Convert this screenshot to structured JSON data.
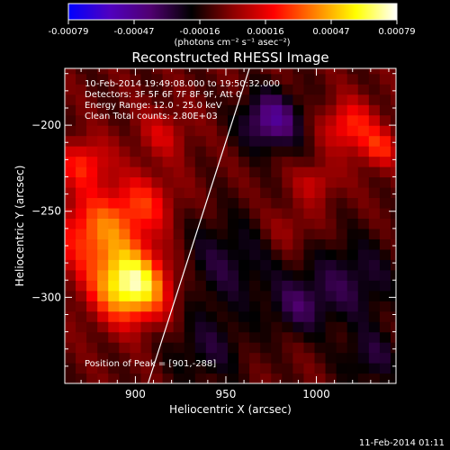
{
  "chart_data": {
    "type": "heatmap",
    "title": "Reconstructed RHESSI Image",
    "xlabel": "Heliocentric X (arcsec)",
    "ylabel": "Heliocentric Y (arcsec)",
    "x_ticks": [
      900,
      950,
      1000
    ],
    "y_ticks": [
      -200,
      -250,
      -300
    ],
    "xlim": [
      861,
      1044
    ],
    "ylim": [
      -350,
      -167
    ],
    "colorbar": {
      "ticks": [
        "-0.00079",
        "-0.00047",
        "-0.00016",
        "0.00016",
        "0.00047",
        "0.00079"
      ],
      "range": [
        -0.00079,
        0.00079
      ],
      "units": "(photons cm⁻² s⁻¹ asec⁻²)",
      "colormap": [
        "#0000ff",
        "#5000c0",
        "#500070",
        "#000000",
        "#8b0000",
        "#ff0000",
        "#ff8000",
        "#ffff00",
        "#ffffff"
      ]
    },
    "annotations": [
      "10-Feb-2014 19:49:08.000  to 19:50:32.000",
      "Detectors: 3F 5F 6F 7F 8F 9F, Att 0",
      "Energy Range: 12.0 - 25.0 keV",
      "Clean     Total counts: 2.80E+03"
    ],
    "peak_label": "Position of Peak = [901,-288]",
    "peak": [
      901,
      -288
    ],
    "limb_line": [
      [
        907,
        -350
      ],
      [
        963,
        -167
      ]
    ],
    "sources": [
      {
        "x": 898,
        "y": -293,
        "sigma": 14,
        "amp": 0.00079
      },
      {
        "x": 880,
        "y": -262,
        "sigma": 16,
        "amp": 0.00042
      },
      {
        "x": 905,
        "y": -245,
        "sigma": 12,
        "amp": 0.00025
      },
      {
        "x": 872,
        "y": -222,
        "sigma": 10,
        "amp": 0.0003
      },
      {
        "x": 915,
        "y": -205,
        "sigma": 10,
        "amp": 0.00018
      },
      {
        "x": 1018,
        "y": -200,
        "sigma": 10,
        "amp": 0.00032
      },
      {
        "x": 1035,
        "y": -213,
        "sigma": 8,
        "amp": 0.00028
      },
      {
        "x": 1000,
        "y": -233,
        "sigma": 8,
        "amp": 0.00018
      },
      {
        "x": 985,
        "y": -260,
        "sigma": 10,
        "amp": 0.00012
      },
      {
        "x": 975,
        "y": -197,
        "sigma": 12,
        "amp": -0.0004
      },
      {
        "x": 990,
        "y": -305,
        "sigma": 12,
        "amp": -0.00022
      },
      {
        "x": 950,
        "y": -280,
        "sigma": 20,
        "amp": -0.0002
      },
      {
        "x": 1020,
        "y": -290,
        "sigma": 18,
        "amp": -0.00022
      },
      {
        "x": 940,
        "y": -330,
        "sigma": 15,
        "amp": -0.00018
      },
      {
        "x": 1030,
        "y": -335,
        "sigma": 12,
        "amp": -0.0002
      }
    ]
  },
  "footer_date": "11-Feb-2014 01:11"
}
